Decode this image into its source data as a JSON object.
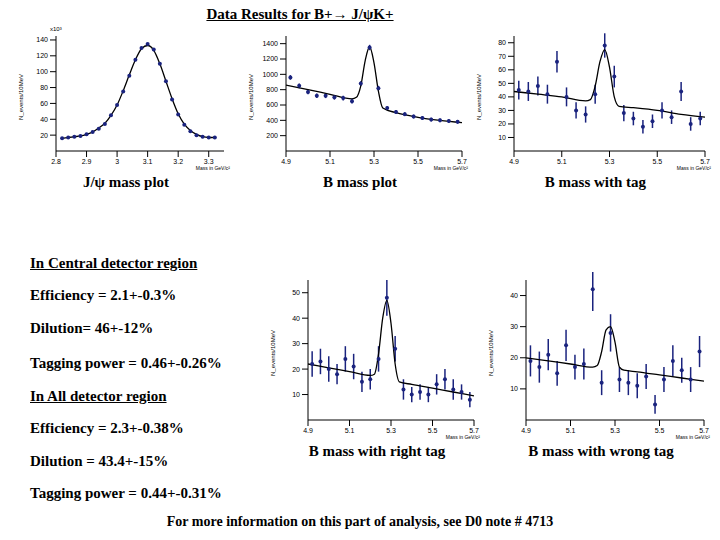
{
  "title": "Data Results for B+→ J/ψK+",
  "chart_data": [
    {
      "type": "scatter",
      "title": "J/ψ mass plot",
      "x_label": "Mass in GeV/c²",
      "y_label": "N_events/10MeV",
      "annotation": "x10³",
      "xlim": [
        2.8,
        3.35
      ],
      "xticks": [
        2.8,
        2.9,
        3,
        3.1,
        3.2,
        3.3
      ],
      "ylim": [
        0,
        145
      ],
      "yticks": [
        20,
        40,
        60,
        80,
        100,
        120,
        140
      ],
      "series": [
        {
          "type": "scatter",
          "marker": "circle",
          "color": "#1a237e",
          "x": [
            2.82,
            2.84,
            2.86,
            2.88,
            2.9,
            2.92,
            2.94,
            2.96,
            2.98,
            3.0,
            3.02,
            3.04,
            3.06,
            3.08,
            3.1,
            3.12,
            3.14,
            3.16,
            3.18,
            3.2,
            3.22,
            3.24,
            3.26,
            3.28,
            3.3,
            3.32
          ],
          "values": [
            16,
            17,
            18,
            19,
            21,
            24,
            28,
            34,
            45,
            58,
            75,
            95,
            115,
            130,
            135,
            128,
            110,
            88,
            65,
            46,
            33,
            25,
            20,
            18,
            17,
            17
          ]
        },
        {
          "type": "line",
          "line_style": "solid",
          "color": "#000000",
          "x": [
            2.82,
            2.84,
            2.86,
            2.88,
            2.9,
            2.92,
            2.94,
            2.96,
            2.98,
            3.0,
            3.02,
            3.04,
            3.06,
            3.08,
            3.1,
            3.12,
            3.14,
            3.16,
            3.18,
            3.2,
            3.22,
            3.24,
            3.26,
            3.28,
            3.3,
            3.32
          ],
          "values": [
            16,
            17,
            18,
            19,
            21,
            24,
            29,
            35,
            45,
            58,
            76,
            96,
            115,
            129,
            133,
            127,
            110,
            88,
            66,
            47,
            34,
            26,
            21,
            18,
            17,
            17
          ]
        }
      ]
    },
    {
      "type": "scatter",
      "title": "B mass plot",
      "x_label": "Mass in GeV/c²",
      "y_label": "N_events/10MeV",
      "xlim": [
        4.9,
        5.7
      ],
      "xticks": [
        4.9,
        5.1,
        5.3,
        5.5,
        5.7
      ],
      "ylim": [
        0,
        1500
      ],
      "yticks": [
        200,
        400,
        600,
        800,
        1000,
        1200,
        1400
      ],
      "series": [
        {
          "type": "scatter",
          "marker": "circle",
          "color": "#1a237e",
          "x": [
            4.92,
            4.96,
            5.0,
            5.04,
            5.08,
            5.12,
            5.16,
            5.2,
            5.24,
            5.28,
            5.32,
            5.36,
            5.4,
            5.44,
            5.48,
            5.52,
            5.56,
            5.6,
            5.64,
            5.68
          ],
          "values": [
            960,
            850,
            770,
            720,
            720,
            700,
            690,
            650,
            880,
            1350,
            820,
            560,
            510,
            480,
            450,
            430,
            410,
            400,
            390,
            380
          ],
          "errors": [
            30,
            30,
            30,
            30,
            30,
            30,
            30,
            30,
            30,
            35,
            30,
            25,
            25,
            25,
            25,
            25,
            25,
            25,
            25,
            25
          ]
        },
        {
          "type": "line",
          "line_style": "solid",
          "color": "#000000",
          "x": [
            4.9,
            5.0,
            5.1,
            5.2,
            5.22,
            5.24,
            5.26,
            5.28,
            5.3,
            5.32,
            5.34,
            5.4,
            5.5,
            5.6,
            5.7
          ],
          "values": [
            860,
            800,
            740,
            680,
            700,
            850,
            1180,
            1360,
            1150,
            780,
            560,
            500,
            440,
            400,
            370
          ]
        }
      ]
    },
    {
      "type": "scatter",
      "title": "B mass with tag",
      "x_label": "Mass in GeV/c²",
      "y_label": "N_events/10MeV",
      "xlim": [
        4.9,
        5.7
      ],
      "xticks": [
        4.9,
        5.1,
        5.3,
        5.5,
        5.7
      ],
      "ylim": [
        0,
        85
      ],
      "yticks": [
        10,
        20,
        30,
        40,
        50,
        60,
        70,
        80
      ],
      "series": [
        {
          "type": "scatter",
          "marker": "circle",
          "color": "#1a237e",
          "x": [
            4.92,
            4.96,
            5.0,
            5.04,
            5.08,
            5.12,
            5.16,
            5.2,
            5.24,
            5.28,
            5.32,
            5.36,
            5.4,
            5.44,
            5.48,
            5.52,
            5.56,
            5.6,
            5.64,
            5.68
          ],
          "values": [
            45,
            44,
            48,
            42,
            66,
            40,
            30,
            27,
            42,
            78,
            55,
            28,
            24,
            18,
            22,
            30,
            25,
            44,
            20,
            24
          ],
          "errors": [
            7,
            7,
            7,
            7,
            8,
            7,
            6,
            6,
            7,
            9,
            8,
            6,
            5,
            5,
            5,
            6,
            5,
            7,
            5,
            5
          ]
        },
        {
          "type": "line",
          "line_style": "solid",
          "color": "#000000",
          "x": [
            4.9,
            5.0,
            5.1,
            5.2,
            5.22,
            5.24,
            5.26,
            5.28,
            5.3,
            5.32,
            5.34,
            5.4,
            5.5,
            5.6,
            5.7
          ],
          "values": [
            44,
            42,
            40,
            37,
            38,
            48,
            66,
            75,
            62,
            40,
            33,
            32,
            30,
            27,
            25
          ]
        }
      ]
    },
    {
      "type": "scatter",
      "title": "B mass with right tag",
      "x_label": "Mass in GeV/c²",
      "y_label": "N_events/10MeV",
      "xlim": [
        4.9,
        5.7
      ],
      "xticks": [
        4.9,
        5.1,
        5.3,
        5.5,
        5.7
      ],
      "ylim": [
        0,
        55
      ],
      "yticks": [
        10,
        20,
        30,
        40,
        50
      ],
      "series": [
        {
          "type": "scatter",
          "marker": "circle",
          "color": "#1a237e",
          "x": [
            4.92,
            4.96,
            5.0,
            5.04,
            5.08,
            5.12,
            5.16,
            5.2,
            5.24,
            5.28,
            5.32,
            5.36,
            5.4,
            5.44,
            5.48,
            5.52,
            5.56,
            5.6,
            5.64,
            5.68
          ],
          "values": [
            22,
            23,
            20,
            18,
            24,
            21,
            15,
            16,
            24,
            48,
            28,
            12,
            10,
            11,
            10,
            14,
            16,
            12,
            11,
            8
          ],
          "errors": [
            5,
            5,
            5,
            4,
            5,
            5,
            4,
            4,
            5,
            7,
            5,
            4,
            3,
            3,
            3,
            4,
            4,
            4,
            3,
            3
          ]
        },
        {
          "type": "line",
          "line_style": "solid",
          "color": "#000000",
          "x": [
            4.9,
            5.0,
            5.1,
            5.2,
            5.22,
            5.24,
            5.26,
            5.28,
            5.3,
            5.32,
            5.34,
            5.4,
            5.5,
            5.6,
            5.7
          ],
          "values": [
            22,
            20.5,
            19,
            17.5,
            18,
            26,
            40,
            47,
            38,
            22,
            15,
            14,
            12.5,
            11,
            9.5
          ]
        }
      ]
    },
    {
      "type": "scatter",
      "title": "B mass with wrong tag",
      "x_label": "Mass in GeV/c²",
      "y_label": "N_events/10MeV",
      "xlim": [
        4.9,
        5.7
      ],
      "xticks": [
        4.9,
        5.1,
        5.3,
        5.5,
        5.7
      ],
      "ylim": [
        0,
        45
      ],
      "yticks": [
        10,
        20,
        30,
        40
      ],
      "series": [
        {
          "type": "scatter",
          "marker": "circle",
          "color": "#1a237e",
          "x": [
            4.92,
            4.96,
            5.0,
            5.04,
            5.08,
            5.12,
            5.16,
            5.2,
            5.24,
            5.28,
            5.32,
            5.36,
            5.4,
            5.44,
            5.48,
            5.52,
            5.56,
            5.6,
            5.64,
            5.68
          ],
          "values": [
            19,
            17,
            21,
            15,
            24,
            17,
            18,
            42,
            12,
            28,
            13,
            12,
            11,
            14,
            5,
            13,
            19,
            16,
            13,
            22
          ],
          "errors": [
            5,
            5,
            5,
            4,
            5,
            4,
            5,
            7,
            4,
            6,
            4,
            4,
            4,
            4,
            3,
            4,
            5,
            4,
            4,
            5
          ]
        },
        {
          "type": "line",
          "line_style": "solid",
          "color": "#000000",
          "x": [
            4.9,
            5.0,
            5.1,
            5.2,
            5.22,
            5.24,
            5.26,
            5.28,
            5.3,
            5.32,
            5.34,
            5.4,
            5.5,
            5.6,
            5.7
          ],
          "values": [
            20,
            19,
            18,
            17,
            17.5,
            22,
            29,
            30,
            25,
            17,
            16,
            15.5,
            14.5,
            13.5,
            12.5
          ]
        }
      ]
    }
  ],
  "sections": [
    {
      "heading": "In Central detector region",
      "lines": [
        "Efficiency = 2.1+-0.3%",
        "Dilution= 46+-12%",
        "Tagging power = 0.46+-0.26%"
      ]
    },
    {
      "heading": "In All detector region",
      "lines": [
        "Efficiency = 2.3+-0.38%",
        "Dilution = 43.4+-15%",
        "Tagging power = 0.44+-0.31%"
      ]
    }
  ],
  "footer": "For more information on this part of analysis, see D0 note # 4713"
}
